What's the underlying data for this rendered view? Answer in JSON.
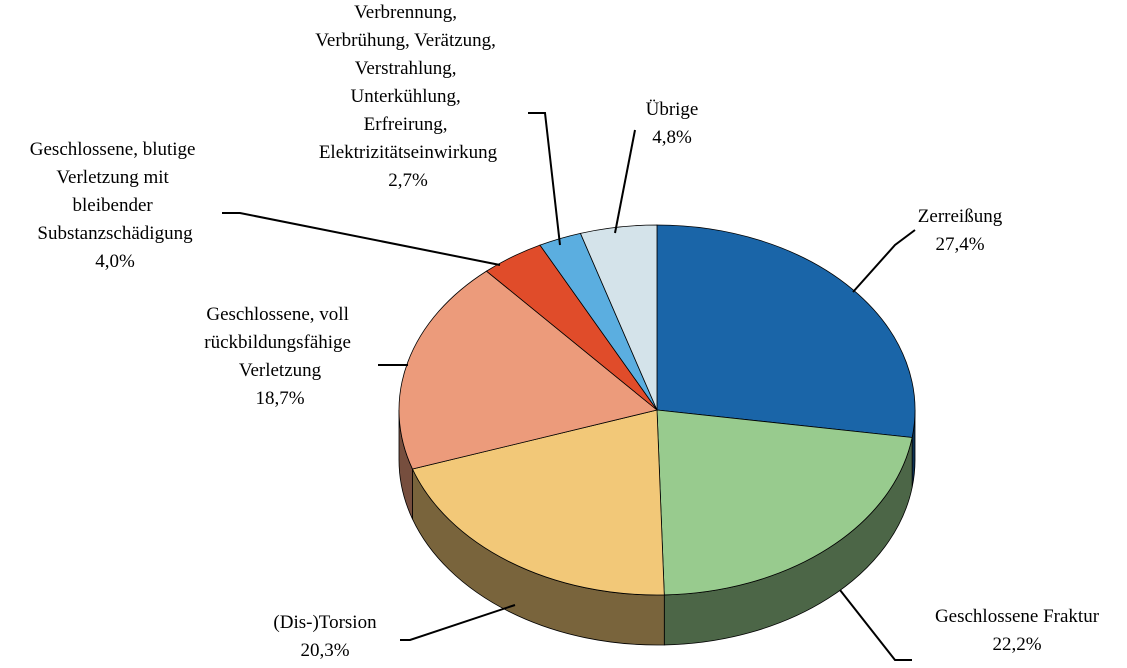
{
  "chart_data": {
    "type": "pie3d",
    "categories": [
      "Zerreißung",
      "Geschlossene Fraktur",
      "(Dis-)Torsion",
      "Geschlossene, voll rückbildungsfähige Verletzung",
      "Geschlossene, blutige Verletzung mit bleibender Substanzschädigung",
      "Verbrennung, Verbrühung, Verätzung, Verstrahlung, Unterkühlung, Erfreirung, Elektrizitätseinwirkung",
      "Übrige"
    ],
    "values": [
      27.4,
      22.2,
      20.3,
      18.7,
      4.0,
      2.7,
      4.8
    ],
    "value_labels": [
      "27,4%",
      "22,2%",
      "20,3%",
      "18,7%",
      "4,0%",
      "2,7%",
      "4,8%"
    ],
    "colors": [
      "#1a65a8",
      "#98cb8e",
      "#f2c878",
      "#ec9b7b",
      "#e04c2a",
      "#5baee0",
      "#d4e3ea"
    ]
  }
}
